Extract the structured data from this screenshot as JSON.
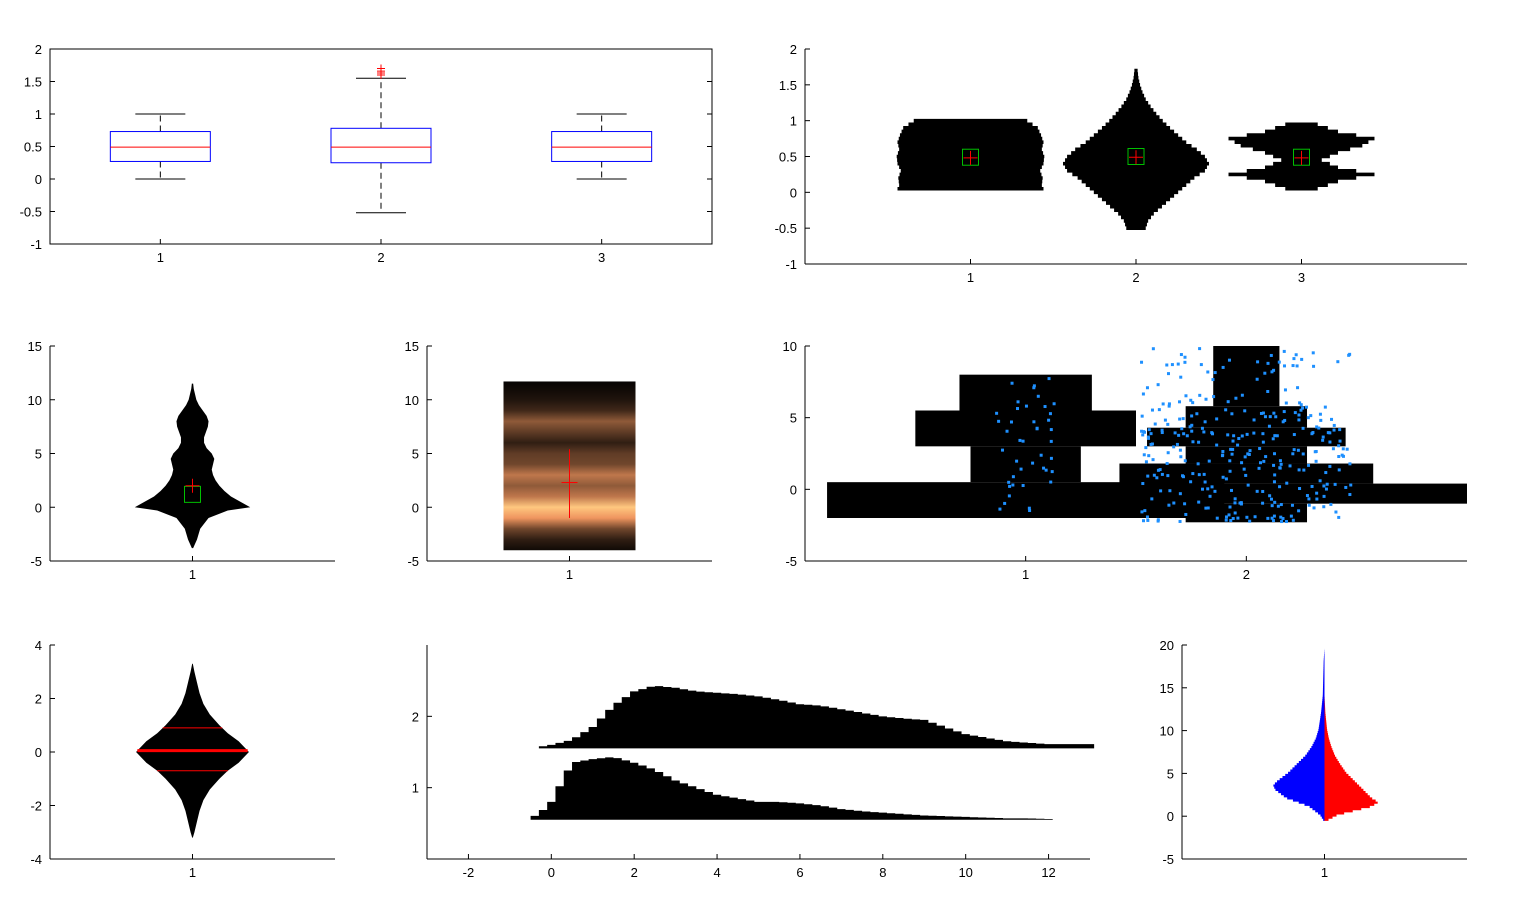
{
  "chart_data": [
    {
      "id": "boxplot-a",
      "type": "boxplot",
      "categories": [
        "1",
        "2",
        "3"
      ],
      "ylim": [
        -1,
        2
      ],
      "yticks": [
        -1,
        -0.5,
        0,
        0.5,
        1,
        1.5,
        2
      ],
      "ytick_labels": [
        "-1",
        "-0.5",
        "0",
        "0.5",
        "1",
        "1.5",
        "2"
      ],
      "box_color": "#0000ff",
      "median_color": "#ff0000",
      "outlier_color": "#ff0000",
      "boxes": [
        {
          "min": 0.0,
          "q1": 0.27,
          "median": 0.49,
          "q3": 0.73,
          "max": 1.0,
          "outliers": []
        },
        {
          "min": -0.52,
          "q1": 0.25,
          "median": 0.49,
          "q3": 0.78,
          "max": 1.55,
          "outliers": [
            1.6,
            1.63,
            1.66,
            1.7
          ]
        },
        {
          "min": 0.0,
          "q1": 0.27,
          "median": 0.49,
          "q3": 0.73,
          "max": 1.0,
          "outliers": []
        }
      ]
    },
    {
      "id": "histviolin-a",
      "type": "histogram-violin",
      "categories": [
        "1",
        "2",
        "3"
      ],
      "ylim": [
        -1,
        2
      ],
      "yticks": [
        -1,
        -0.5,
        0,
        0.5,
        1,
        1.5,
        2
      ],
      "ytick_labels": [
        "-1",
        "-0.5",
        "0",
        "0.5",
        "1",
        "1.5",
        "2"
      ],
      "fill_color": "#000000",
      "mean": [
        0.48,
        0.49,
        0.48
      ],
      "median": [
        0.49,
        0.5,
        0.49
      ],
      "mean_color": "#ff0000",
      "median_color": "#00c000",
      "violins": [
        {
          "y": [
            0.05,
            0.1,
            0.2,
            0.3,
            0.4,
            0.5,
            0.6,
            0.7,
            0.8,
            0.9,
            1.0
          ],
          "w": [
            0.9,
            0.88,
            0.89,
            0.86,
            0.9,
            0.91,
            0.88,
            0.9,
            0.87,
            0.83,
            0.7
          ]
        },
        {
          "y": [
            -0.5,
            -0.4,
            -0.3,
            -0.2,
            -0.1,
            0.0,
            0.1,
            0.2,
            0.3,
            0.4,
            0.5,
            0.6,
            0.7,
            0.8,
            0.9,
            1.0,
            1.1,
            1.2,
            1.3,
            1.4,
            1.5,
            1.6,
            1.7
          ],
          "w": [
            0.12,
            0.15,
            0.22,
            0.32,
            0.42,
            0.52,
            0.62,
            0.72,
            0.85,
            0.9,
            0.85,
            0.75,
            0.62,
            0.52,
            0.42,
            0.33,
            0.25,
            0.18,
            0.12,
            0.08,
            0.05,
            0.03,
            0.02
          ]
        },
        {
          "y": [
            0.05,
            0.15,
            0.25,
            0.35,
            0.45,
            0.55,
            0.65,
            0.75,
            0.85,
            0.95
          ],
          "w": [
            0.2,
            0.45,
            0.9,
            0.45,
            0.25,
            0.45,
            0.75,
            0.9,
            0.45,
            0.2
          ]
        }
      ]
    },
    {
      "id": "kde-violin",
      "type": "violin",
      "categories": [
        "1"
      ],
      "ylim": [
        -5,
        15
      ],
      "yticks": [
        -5,
        0,
        5,
        10,
        15
      ],
      "ytick_labels": [
        "-5",
        "0",
        "5",
        "10",
        "15"
      ],
      "fill_color": "#000000",
      "mean": 2.0,
      "median": 1.2,
      "mean_color": "#ff0000",
      "median_color": "#00c000",
      "profile": {
        "y": [
          -3.8,
          -3.0,
          -2.0,
          -1.0,
          -0.3,
          0.0,
          0.5,
          1.0,
          1.5,
          2.0,
          2.5,
          3.0,
          3.5,
          4.0,
          4.5,
          5.0,
          5.5,
          6.0,
          6.5,
          7.0,
          7.5,
          8.0,
          8.5,
          9.0,
          9.5,
          10.0,
          10.5,
          11.0,
          11.5
        ],
        "w": [
          0.01,
          0.07,
          0.12,
          0.25,
          0.55,
          0.9,
          0.75,
          0.6,
          0.5,
          0.42,
          0.36,
          0.32,
          0.3,
          0.32,
          0.34,
          0.3,
          0.22,
          0.18,
          0.18,
          0.21,
          0.24,
          0.25,
          0.22,
          0.16,
          0.1,
          0.06,
          0.04,
          0.02,
          0.01
        ]
      }
    },
    {
      "id": "density-strip",
      "type": "density-strip",
      "categories": [
        "1"
      ],
      "ylim": [
        -5,
        15
      ],
      "yticks": [
        -5,
        0,
        5,
        10,
        15
      ],
      "ytick_labels": [
        "-5",
        "0",
        "5",
        "10",
        "15"
      ],
      "range": [
        -4,
        11.7
      ],
      "mean": 2.3,
      "mean_color": "#ff0000",
      "sd_span": [
        -1,
        5.4
      ],
      "density": {
        "y": [
          -4,
          -3,
          -2,
          -1,
          0,
          1,
          2,
          3,
          4,
          5,
          6,
          7,
          8,
          9,
          10,
          11,
          11.7
        ],
        "d": [
          0.05,
          0.15,
          0.35,
          0.75,
          1.0,
          0.6,
          0.45,
          0.6,
          0.35,
          0.3,
          0.15,
          0.3,
          0.45,
          0.2,
          0.1,
          0.05,
          0.02
        ]
      }
    },
    {
      "id": "beanplot",
      "type": "histogram-violin-scatter",
      "categories": [
        "1",
        "2"
      ],
      "ylim": [
        -5,
        10
      ],
      "yticks": [
        -5,
        0,
        5,
        10
      ],
      "ytick_labels": [
        "-5",
        "0",
        "5",
        "10"
      ],
      "fill_color": "#000000",
      "point_color": "#1e90ff",
      "violins": [
        {
          "bins": [
            [
              -2,
              0.5,
              1.8
            ],
            [
              0.5,
              3,
              0.5
            ],
            [
              3,
              5.5,
              1.0
            ],
            [
              5.5,
              8,
              0.6
            ]
          ],
          "n_points": 45
        },
        {
          "bins": [
            [
              -2.3,
              -1,
              0.55
            ],
            [
              -1,
              0.4,
              2.0
            ],
            [
              0.4,
              1.8,
              1.15
            ],
            [
              1.8,
              3,
              0.55
            ],
            [
              3,
              4.3,
              0.9
            ],
            [
              4.3,
              5.8,
              0.55
            ],
            [
              5.8,
              10,
              0.3
            ]
          ],
          "n_points": 320
        }
      ]
    },
    {
      "id": "kde-violin-quartiles",
      "type": "violin",
      "categories": [
        "1"
      ],
      "ylim": [
        -4,
        4
      ],
      "yticks": [
        -4,
        -2,
        0,
        2,
        4
      ],
      "ytick_labels": [
        "-4",
        "-2",
        "0",
        "2",
        "4"
      ],
      "fill_color": "#000000",
      "line_color": "#ff0000",
      "median": 0.05,
      "quartiles": [
        -0.7,
        0.9
      ],
      "profile": {
        "y": [
          -3.2,
          -3.0,
          -2.6,
          -2.2,
          -1.8,
          -1.4,
          -1.0,
          -0.7,
          -0.4,
          0.0,
          0.4,
          0.7,
          1.0,
          1.4,
          1.8,
          2.2,
          2.6,
          3.0,
          3.3
        ],
        "w": [
          0.005,
          0.03,
          0.07,
          0.11,
          0.17,
          0.27,
          0.42,
          0.55,
          0.72,
          0.88,
          0.72,
          0.55,
          0.42,
          0.27,
          0.17,
          0.11,
          0.07,
          0.03,
          0.005
        ]
      }
    },
    {
      "id": "horizontal-hist",
      "type": "area",
      "orientation": "horizontal",
      "categories": [
        "1",
        "2"
      ],
      "xlim": [
        -3,
        13
      ],
      "xticks": [
        -2,
        0,
        2,
        4,
        6,
        8,
        10,
        12
      ],
      "xtick_labels": [
        "-2",
        "0",
        "2",
        "4",
        "6",
        "8",
        "10",
        "12"
      ],
      "yticks": [
        1,
        2
      ],
      "ytick_labels": [
        "1",
        "2"
      ],
      "fill_color": "#000000",
      "series": [
        {
          "baseline": 0.55,
          "x": [
            -0.5,
            -0.3,
            0.0,
            0.5,
            1.0,
            1.5,
            2.0,
            2.5,
            3.0,
            3.5,
            4.0,
            4.5,
            5.0,
            5.5,
            6.0,
            6.5,
            7.0,
            7.5,
            8.0,
            8.5,
            9.0,
            9.5,
            10.0,
            10.5,
            11.0,
            11.5,
            12.0
          ],
          "h": [
            0.03,
            0.08,
            0.25,
            0.8,
            0.85,
            0.88,
            0.8,
            0.7,
            0.55,
            0.45,
            0.35,
            0.3,
            0.25,
            0.25,
            0.23,
            0.2,
            0.15,
            0.12,
            0.1,
            0.08,
            0.06,
            0.05,
            0.04,
            0.03,
            0.02,
            0.02,
            0.01
          ]
        },
        {
          "baseline": 1.55,
          "x": [
            -0.3,
            0.0,
            0.5,
            1.0,
            1.5,
            2.0,
            2.5,
            3.0,
            3.5,
            4.0,
            4.5,
            5.0,
            5.5,
            6.0,
            6.5,
            7.0,
            7.5,
            8.0,
            8.5,
            9.0,
            9.5,
            10.0,
            10.5,
            11.0,
            11.5,
            12.0,
            12.5,
            13.0
          ],
          "h": [
            0.02,
            0.05,
            0.12,
            0.3,
            0.6,
            0.8,
            0.88,
            0.85,
            0.8,
            0.78,
            0.76,
            0.73,
            0.68,
            0.62,
            0.6,
            0.55,
            0.5,
            0.45,
            0.42,
            0.4,
            0.3,
            0.2,
            0.15,
            0.1,
            0.08,
            0.06,
            0.06,
            0.06
          ]
        }
      ]
    },
    {
      "id": "split-violin",
      "type": "split-violin",
      "categories": [
        "1"
      ],
      "ylim": [
        -5,
        20
      ],
      "yticks": [
        -5,
        0,
        5,
        10,
        15,
        20
      ],
      "ytick_labels": [
        "-5",
        "0",
        "5",
        "10",
        "15",
        "20"
      ],
      "left_color": "#0000ff",
      "right_color": "#ff0000",
      "left": {
        "y": [
          -0.8,
          0.0,
          1.0,
          2.0,
          3.0,
          3.5,
          4.0,
          5.0,
          6.0,
          7.0,
          8.0,
          9.0,
          10.0,
          12.0,
          14.0,
          16.0,
          18.0,
          19.5
        ],
        "w": [
          0.0,
          0.05,
          0.18,
          0.45,
          0.58,
          0.6,
          0.55,
          0.42,
          0.32,
          0.22,
          0.15,
          0.1,
          0.07,
          0.04,
          0.02,
          0.015,
          0.01,
          0.0
        ]
      },
      "right": {
        "y": [
          -0.8,
          0.0,
          1.0,
          1.5,
          2.0,
          3.0,
          4.0,
          5.0,
          6.0,
          7.0,
          8.0,
          9.0,
          10.0,
          11.0,
          12.0,
          14.0
        ],
        "w": [
          0.0,
          0.15,
          0.55,
          0.63,
          0.55,
          0.45,
          0.35,
          0.25,
          0.18,
          0.12,
          0.08,
          0.05,
          0.03,
          0.02,
          0.01,
          0.0
        ]
      }
    }
  ]
}
